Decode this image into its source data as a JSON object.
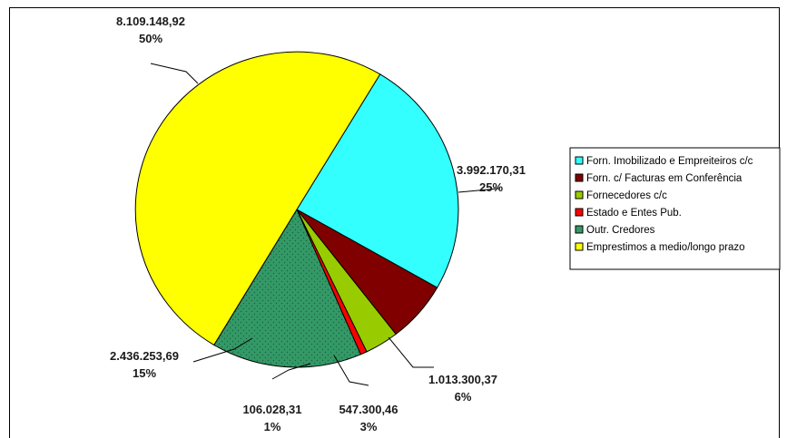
{
  "chart_data": {
    "type": "pie",
    "start_angle_deg": 59,
    "direction": "clockwise",
    "legend_position": "right",
    "slices": [
      {
        "label": "Forn. Imobilizado e Empreiteiros c/c",
        "value": 3992170.31,
        "value_text": "3.992.170,31",
        "pct_text": "25%",
        "color": "#33FFFF"
      },
      {
        "label": "Forn. c/ Facturas em Conferência",
        "value": 1013300.37,
        "value_text": "1.013.300,37",
        "pct_text": "6%",
        "color": "#800000"
      },
      {
        "label": "Fornecedores c/c",
        "value": 547300.46,
        "value_text": "547.300,46",
        "pct_text": "3%",
        "color": "#99CC00"
      },
      {
        "label": "Estado e Entes Pub.",
        "value": 106028.31,
        "value_text": "106.028,31",
        "pct_text": "1%",
        "color": "#FF0000"
      },
      {
        "label": "Outr. Credores",
        "value": 2436253.69,
        "value_text": "2.436.253,69",
        "pct_text": "15%",
        "color": "#339966"
      },
      {
        "label": "Emprestimos a medio/longo prazo",
        "value": 8109148.92,
        "value_text": "8.109.148,92",
        "pct_text": "50%",
        "color": "#FFFF00"
      }
    ]
  }
}
